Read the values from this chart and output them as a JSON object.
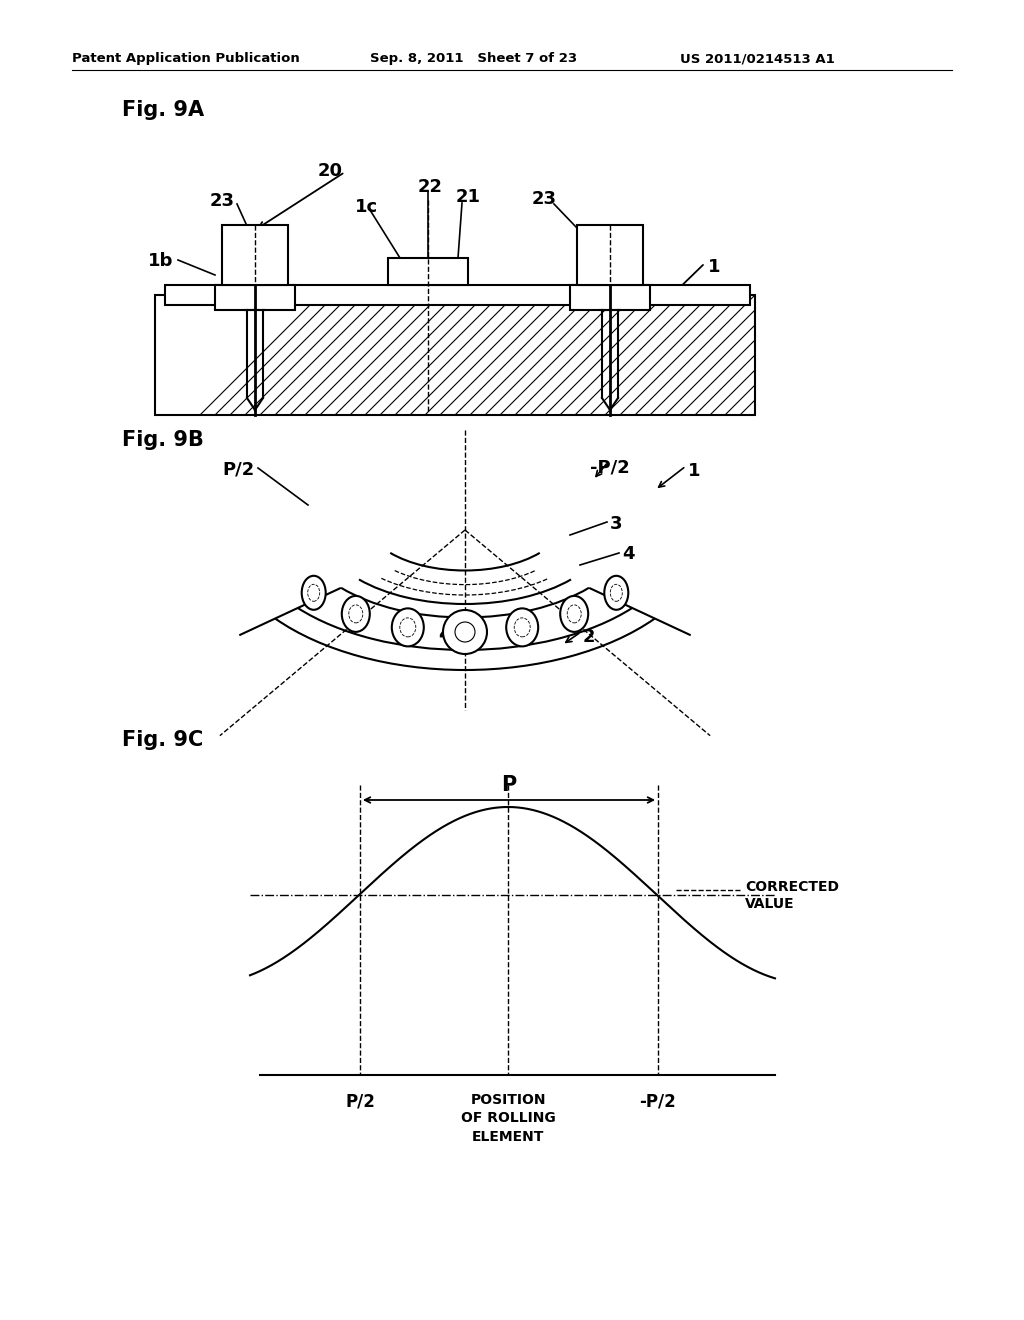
{
  "header_left": "Patent Application Publication",
  "header_mid": "Sep. 8, 2011   Sheet 7 of 23",
  "header_right": "US 2011/0214513 A1",
  "fig9a_label": "Fig. 9A",
  "fig9b_label": "Fig. 9B",
  "fig9c_label": "Fig. 9C",
  "bg_color": "#ffffff",
  "line_color": "#000000",
  "corrected_value_label": "CORRECTED\nVALUE",
  "P_label": "P"
}
